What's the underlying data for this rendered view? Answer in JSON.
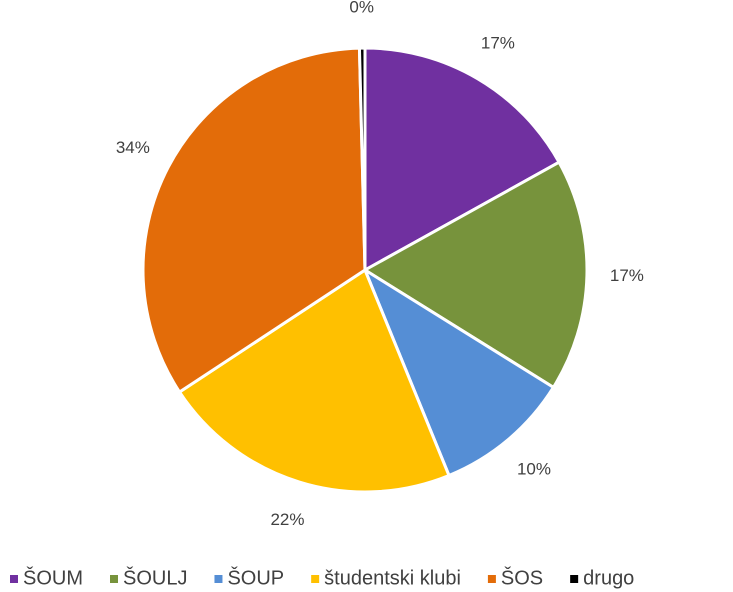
{
  "chart_data": {
    "type": "pie",
    "categories": [
      "ŠOUM",
      "ŠOULJ",
      "ŠOUP",
      "študentski klubi",
      "ŠOS",
      "drugo"
    ],
    "values": [
      17,
      17,
      10,
      22,
      34,
      0.4
    ],
    "value_labels": [
      "17%",
      "17%",
      "10%",
      "22%",
      "34%",
      "0%"
    ],
    "colors": [
      "#7030a0",
      "#77933c",
      "#558ed5",
      "#ffc000",
      "#e36c09",
      "#000000"
    ],
    "legend": "bottom"
  }
}
